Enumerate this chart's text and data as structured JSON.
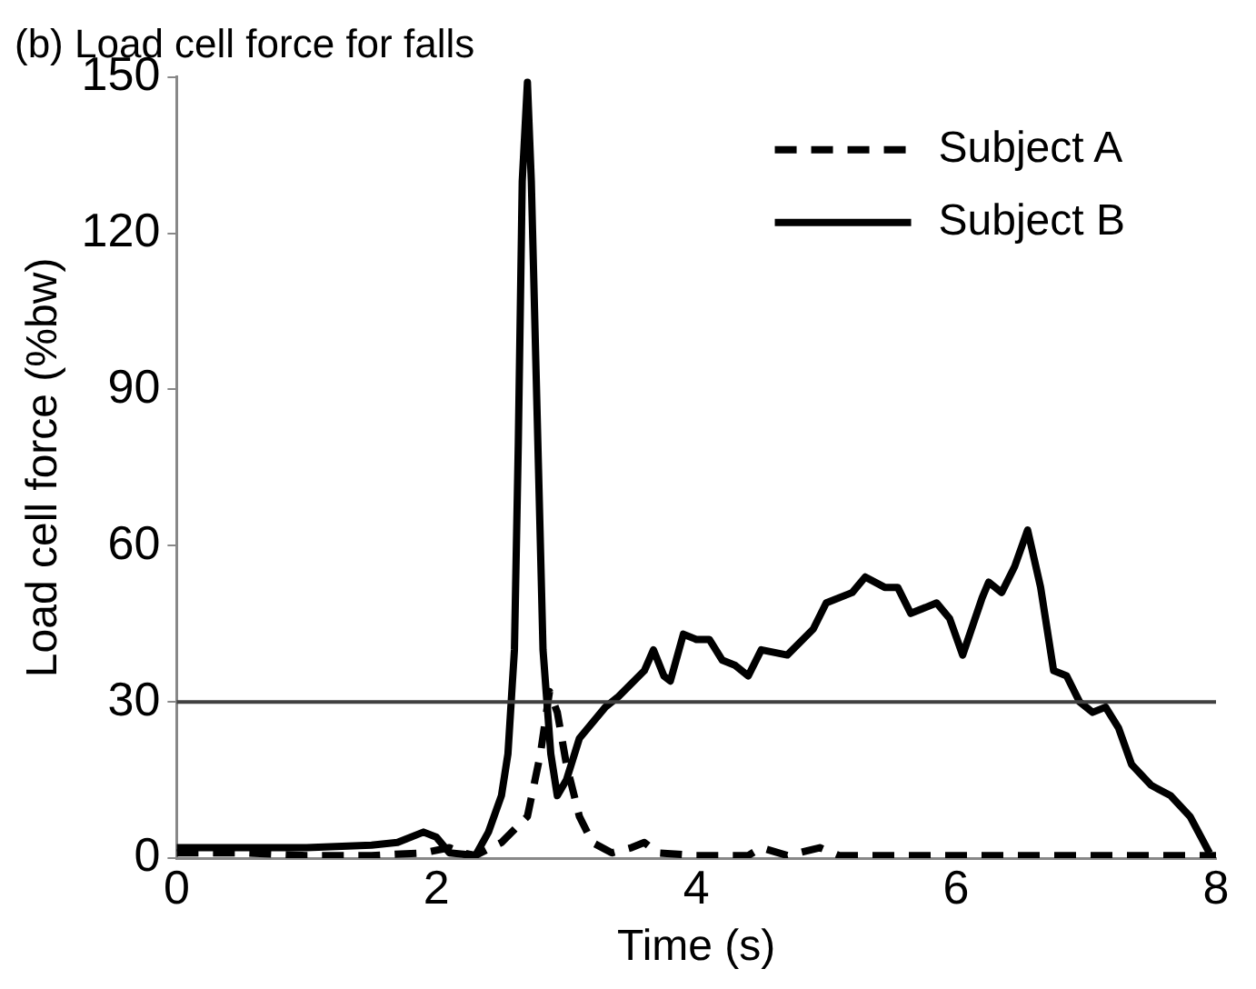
{
  "chart_data": {
    "type": "line",
    "title": "(b) Load cell force for falls",
    "xlabel": "Time (s)",
    "ylabel": "Load cell force (%bw)",
    "xlim": [
      0,
      8
    ],
    "xticks": [
      0,
      2,
      4,
      6,
      8
    ],
    "ylim": [
      0,
      150
    ],
    "yticks": [
      0,
      30,
      60,
      90,
      120,
      150
    ],
    "grid": false,
    "legend": "top right",
    "marker": "none",
    "ref_lines": [
      {
        "axis": "y",
        "value": 30,
        "color": "#404040"
      }
    ],
    "series": [
      {
        "name": "Subject A",
        "color": "#000000",
        "line_style": "dashed",
        "x": [
          0,
          0.5,
          1,
          1.5,
          1.9,
          2.1,
          2.2,
          2.3,
          2.5,
          2.7,
          2.8,
          2.87,
          2.93,
          3.0,
          3.1,
          3.2,
          3.35,
          3.5,
          3.6,
          3.7,
          4.0,
          4.4,
          4.5,
          4.7,
          4.95,
          5.1,
          6,
          7,
          8
        ],
        "values": [
          1,
          1,
          0.5,
          0.5,
          1,
          2,
          1,
          0.5,
          3,
          8,
          20,
          32,
          28,
          18,
          8,
          3,
          1,
          2,
          3,
          1,
          0.5,
          0.5,
          2,
          0.5,
          2,
          0.5,
          0.5,
          0.5,
          0.5
        ]
      },
      {
        "name": "Subject B",
        "color": "#000000",
        "line_style": "solid",
        "x": [
          0,
          0.5,
          1,
          1.5,
          1.7,
          1.9,
          2.0,
          2.1,
          2.3,
          2.4,
          2.5,
          2.55,
          2.6,
          2.63,
          2.66,
          2.7,
          2.73,
          2.78,
          2.82,
          2.88,
          2.93,
          3.0,
          3.1,
          3.3,
          3.4,
          3.6,
          3.67,
          3.75,
          3.8,
          3.9,
          4.0,
          4.1,
          4.2,
          4.3,
          4.4,
          4.5,
          4.7,
          4.9,
          5.0,
          5.2,
          5.3,
          5.45,
          5.55,
          5.65,
          5.85,
          5.95,
          6.05,
          6.2,
          6.25,
          6.35,
          6.45,
          6.55,
          6.65,
          6.75,
          6.85,
          6.95,
          7.05,
          7.15,
          7.25,
          7.35,
          7.5,
          7.65,
          7.8,
          7.95
        ],
        "values": [
          2,
          2,
          2,
          2.5,
          3,
          5,
          4,
          1,
          0.5,
          5,
          12,
          20,
          40,
          80,
          130,
          149,
          130,
          80,
          40,
          20,
          12,
          15,
          23,
          29,
          31,
          36,
          40,
          35,
          34,
          43,
          42,
          42,
          38,
          37,
          35,
          40,
          39,
          44,
          49,
          51,
          54,
          52,
          52,
          47,
          49,
          46,
          39,
          50,
          53,
          51,
          56,
          63,
          52,
          36,
          35,
          30,
          28,
          29,
          25,
          18,
          14,
          12,
          8,
          1
        ]
      }
    ]
  }
}
